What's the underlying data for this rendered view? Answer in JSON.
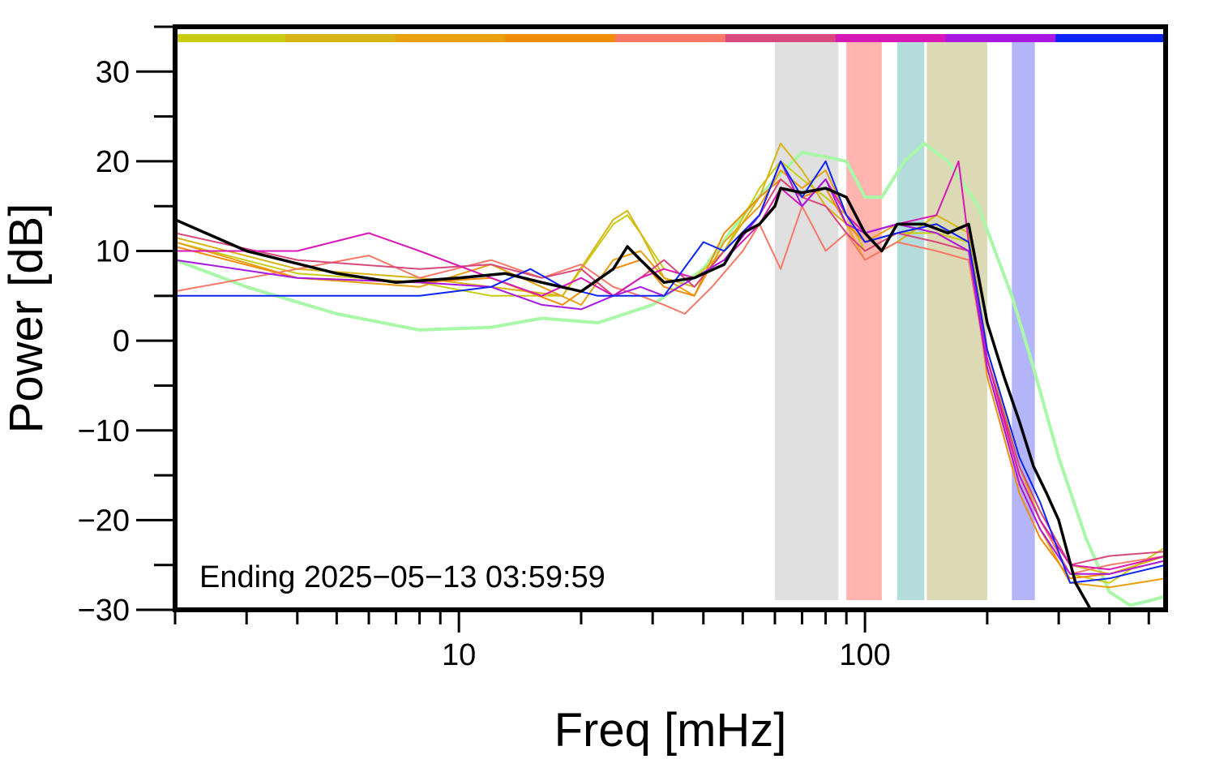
{
  "chart_data": {
    "type": "line",
    "title": "",
    "xlabel": "Freq [mHz]",
    "ylabel": "Power [dB]",
    "annotation": "Ending 2025−05−13 03:59:59",
    "x_scale": "log",
    "xlim": [
      2,
      550
    ],
    "ylim": [
      -30,
      35
    ],
    "x_ticks_major": [
      10,
      100
    ],
    "x_tick_labels": [
      "10",
      "100"
    ],
    "y_ticks": [
      -30,
      -20,
      -10,
      0,
      10,
      20,
      30
    ],
    "y_tick_labels": [
      "−30",
      "−20",
      "−10",
      "0",
      "10",
      "20",
      "30"
    ],
    "grid": false,
    "legend": "none",
    "top_color_strip": [
      "#c8cc14",
      "#d8b414",
      "#e8a010",
      "#f08c0a",
      "#f87868",
      "#d8487c",
      "#d818b4",
      "#a818e0",
      "#0c24f8"
    ],
    "shaded_bands": [
      {
        "x0": 60,
        "x1": 86,
        "color": "#e0e0e0"
      },
      {
        "x0": 90,
        "x1": 110,
        "color": "#ffb4b0"
      },
      {
        "x0": 120,
        "x1": 140,
        "color": "#b4dcdc"
      },
      {
        "x0": 142,
        "x1": 200,
        "color": "#dcdab4"
      },
      {
        "x0": 230,
        "x1": 262,
        "color": "#b4b4f8"
      }
    ],
    "series": [
      {
        "color": "#a8f8a8",
        "width": 4,
        "points": [
          [
            2,
            9
          ],
          [
            3,
            6
          ],
          [
            5,
            3
          ],
          [
            8,
            1.2
          ],
          [
            12,
            1.5
          ],
          [
            16,
            2.5
          ],
          [
            22,
            2
          ],
          [
            30,
            4
          ],
          [
            40,
            8
          ],
          [
            50,
            14
          ],
          [
            60,
            18
          ],
          [
            70,
            21
          ],
          [
            80,
            20.5
          ],
          [
            90,
            20
          ],
          [
            100,
            16
          ],
          [
            110,
            16
          ],
          [
            125,
            20
          ],
          [
            140,
            22
          ],
          [
            160,
            20
          ],
          [
            190,
            15
          ],
          [
            230,
            5
          ],
          [
            260,
            -3
          ],
          [
            300,
            -13
          ],
          [
            350,
            -22
          ],
          [
            400,
            -28
          ],
          [
            450,
            -29.5
          ],
          [
            500,
            -29
          ],
          [
            550,
            -28.5
          ]
        ]
      },
      {
        "color": "#c8cc14",
        "width": 2,
        "points": [
          [
            2,
            11
          ],
          [
            4,
            7.5
          ],
          [
            8,
            6.5
          ],
          [
            12,
            5
          ],
          [
            18,
            5
          ],
          [
            24,
            13
          ],
          [
            26,
            14
          ],
          [
            28,
            12
          ],
          [
            32,
            8
          ],
          [
            38,
            7
          ],
          [
            45,
            10
          ],
          [
            55,
            17
          ],
          [
            62,
            20
          ],
          [
            70,
            18
          ],
          [
            80,
            16
          ],
          [
            90,
            14
          ],
          [
            100,
            10
          ],
          [
            120,
            12
          ],
          [
            150,
            12
          ],
          [
            180,
            11
          ],
          [
            200,
            -2
          ],
          [
            240,
            -15
          ],
          [
            270,
            -20
          ],
          [
            320,
            -26
          ],
          [
            400,
            -27
          ],
          [
            550,
            -23
          ]
        ]
      },
      {
        "color": "#d8b414",
        "width": 2,
        "points": [
          [
            2,
            11.5
          ],
          [
            4,
            8
          ],
          [
            8,
            7
          ],
          [
            12,
            6
          ],
          [
            18,
            5
          ],
          [
            24,
            13.5
          ],
          [
            26,
            14.5
          ],
          [
            28,
            12
          ],
          [
            32,
            7
          ],
          [
            38,
            6
          ],
          [
            45,
            10
          ],
          [
            55,
            16
          ],
          [
            62,
            22
          ],
          [
            70,
            19
          ],
          [
            80,
            15
          ],
          [
            90,
            13
          ],
          [
            100,
            9
          ],
          [
            120,
            11
          ],
          [
            150,
            14
          ],
          [
            180,
            12
          ],
          [
            200,
            -1
          ],
          [
            240,
            -14
          ],
          [
            270,
            -20
          ],
          [
            320,
            -25
          ],
          [
            400,
            -26
          ],
          [
            550,
            -24
          ]
        ]
      },
      {
        "color": "#e8a010",
        "width": 2,
        "points": [
          [
            2,
            11
          ],
          [
            4,
            7
          ],
          [
            8,
            6
          ],
          [
            12,
            8.5
          ],
          [
            16,
            6
          ],
          [
            20,
            4
          ],
          [
            24,
            9
          ],
          [
            28,
            10
          ],
          [
            32,
            7
          ],
          [
            38,
            5
          ],
          [
            45,
            11
          ],
          [
            55,
            15
          ],
          [
            62,
            19
          ],
          [
            70,
            17
          ],
          [
            80,
            19
          ],
          [
            90,
            14
          ],
          [
            100,
            11
          ],
          [
            120,
            13
          ],
          [
            150,
            12
          ],
          [
            180,
            10
          ],
          [
            200,
            -3
          ],
          [
            240,
            -16
          ],
          [
            270,
            -21
          ],
          [
            320,
            -27
          ],
          [
            400,
            -27.5
          ],
          [
            550,
            -26.5
          ]
        ]
      },
      {
        "color": "#f08c0a",
        "width": 2,
        "points": [
          [
            2,
            10.5
          ],
          [
            4,
            7
          ],
          [
            8,
            6.5
          ],
          [
            12,
            7
          ],
          [
            18,
            4
          ],
          [
            24,
            8
          ],
          [
            28,
            9
          ],
          [
            32,
            6
          ],
          [
            38,
            5
          ],
          [
            45,
            12
          ],
          [
            55,
            16
          ],
          [
            62,
            18
          ],
          [
            70,
            16
          ],
          [
            80,
            17
          ],
          [
            90,
            13
          ],
          [
            100,
            11
          ],
          [
            120,
            12
          ],
          [
            150,
            13
          ],
          [
            180,
            11
          ],
          [
            200,
            -4
          ],
          [
            240,
            -17
          ],
          [
            270,
            -22
          ],
          [
            320,
            -26.5
          ],
          [
            400,
            -26
          ],
          [
            550,
            -24.5
          ]
        ]
      },
      {
        "color": "#f87868",
        "width": 2,
        "points": [
          [
            2,
            5.5
          ],
          [
            4,
            8
          ],
          [
            6,
            9.5
          ],
          [
            8,
            7
          ],
          [
            12,
            9
          ],
          [
            16,
            7
          ],
          [
            20,
            8.5
          ],
          [
            24,
            6
          ],
          [
            28,
            5
          ],
          [
            32,
            4
          ],
          [
            36,
            3
          ],
          [
            42,
            6
          ],
          [
            50,
            10
          ],
          [
            55,
            13
          ],
          [
            62,
            8
          ],
          [
            70,
            15
          ],
          [
            80,
            10
          ],
          [
            90,
            12
          ],
          [
            100,
            9
          ],
          [
            120,
            11
          ],
          [
            150,
            10
          ],
          [
            180,
            9
          ],
          [
            200,
            -3
          ],
          [
            240,
            -15
          ],
          [
            270,
            -20
          ],
          [
            320,
            -26
          ],
          [
            400,
            -25
          ],
          [
            550,
            -24
          ]
        ]
      },
      {
        "color": "#d8487c",
        "width": 2,
        "points": [
          [
            2,
            12
          ],
          [
            4,
            9
          ],
          [
            8,
            8
          ],
          [
            12,
            8.5
          ],
          [
            16,
            7
          ],
          [
            20,
            8
          ],
          [
            24,
            5
          ],
          [
            28,
            7
          ],
          [
            32,
            9
          ],
          [
            38,
            6
          ],
          [
            45,
            10
          ],
          [
            55,
            14
          ],
          [
            62,
            18
          ],
          [
            70,
            16
          ],
          [
            80,
            15
          ],
          [
            90,
            12
          ],
          [
            100,
            10
          ],
          [
            120,
            12
          ],
          [
            150,
            11
          ],
          [
            180,
            10
          ],
          [
            200,
            -2
          ],
          [
            240,
            -14
          ],
          [
            270,
            -19
          ],
          [
            320,
            -25
          ],
          [
            400,
            -24
          ],
          [
            550,
            -23.5
          ]
        ]
      },
      {
        "color": "#d818b4",
        "width": 2,
        "points": [
          [
            2,
            10
          ],
          [
            4,
            10
          ],
          [
            6,
            12
          ],
          [
            8,
            10
          ],
          [
            12,
            7
          ],
          [
            16,
            5
          ],
          [
            20,
            7
          ],
          [
            24,
            5
          ],
          [
            28,
            7
          ],
          [
            32,
            8
          ],
          [
            38,
            7
          ],
          [
            45,
            9
          ],
          [
            55,
            13
          ],
          [
            62,
            17
          ],
          [
            70,
            15
          ],
          [
            80,
            18
          ],
          [
            90,
            14
          ],
          [
            100,
            12
          ],
          [
            120,
            13
          ],
          [
            150,
            14
          ],
          [
            170,
            20
          ],
          [
            180,
            11
          ],
          [
            200,
            -2
          ],
          [
            240,
            -15
          ],
          [
            270,
            -20
          ],
          [
            320,
            -25
          ],
          [
            400,
            -25.5
          ],
          [
            550,
            -24
          ]
        ]
      },
      {
        "color": "#a818e0",
        "width": 2,
        "points": [
          [
            2,
            9
          ],
          [
            4,
            7
          ],
          [
            8,
            6.5
          ],
          [
            12,
            6
          ],
          [
            16,
            4
          ],
          [
            20,
            3.5
          ],
          [
            24,
            5
          ],
          [
            28,
            6
          ],
          [
            32,
            5
          ],
          [
            38,
            7
          ],
          [
            45,
            9
          ],
          [
            55,
            14
          ],
          [
            62,
            20
          ],
          [
            70,
            15
          ],
          [
            80,
            18
          ],
          [
            90,
            13
          ],
          [
            100,
            12
          ],
          [
            120,
            13
          ],
          [
            150,
            12
          ],
          [
            180,
            10
          ],
          [
            200,
            -3
          ],
          [
            240,
            -16
          ],
          [
            270,
            -21
          ],
          [
            320,
            -26
          ],
          [
            400,
            -26
          ],
          [
            550,
            -24.5
          ]
        ]
      },
      {
        "color": "#0c24f8",
        "width": 2,
        "points": [
          [
            2,
            5
          ],
          [
            4,
            5
          ],
          [
            8,
            5
          ],
          [
            12,
            6
          ],
          [
            15,
            8
          ],
          [
            18,
            6
          ],
          [
            22,
            5
          ],
          [
            28,
            5
          ],
          [
            32,
            5
          ],
          [
            40,
            11
          ],
          [
            45,
            10
          ],
          [
            55,
            14
          ],
          [
            62,
            20
          ],
          [
            70,
            16
          ],
          [
            80,
            20
          ],
          [
            90,
            14
          ],
          [
            100,
            11
          ],
          [
            120,
            12
          ],
          [
            150,
            13
          ],
          [
            180,
            11
          ],
          [
            200,
            -1
          ],
          [
            240,
            -13
          ],
          [
            270,
            -18
          ],
          [
            320,
            -27
          ],
          [
            400,
            -26.5
          ],
          [
            550,
            -25
          ]
        ]
      },
      {
        "color": "#000000",
        "width": 3.5,
        "points": [
          [
            2,
            13.5
          ],
          [
            3,
            10
          ],
          [
            5,
            7.5
          ],
          [
            7,
            6.5
          ],
          [
            10,
            7
          ],
          [
            13,
            7.5
          ],
          [
            16,
            6.5
          ],
          [
            20,
            5.5
          ],
          [
            24,
            8
          ],
          [
            26,
            10.5
          ],
          [
            28,
            9
          ],
          [
            32,
            6.5
          ],
          [
            38,
            7
          ],
          [
            45,
            8.5
          ],
          [
            50,
            12
          ],
          [
            55,
            13
          ],
          [
            60,
            15
          ],
          [
            62,
            17
          ],
          [
            70,
            16.5
          ],
          [
            80,
            17
          ],
          [
            90,
            16
          ],
          [
            100,
            12
          ],
          [
            110,
            10
          ],
          [
            120,
            13
          ],
          [
            140,
            13
          ],
          [
            160,
            12
          ],
          [
            180,
            13
          ],
          [
            200,
            2
          ],
          [
            220,
            -4
          ],
          [
            240,
            -9
          ],
          [
            260,
            -14
          ],
          [
            280,
            -17
          ],
          [
            300,
            -20
          ],
          [
            330,
            -27
          ],
          [
            360,
            -30
          ]
        ]
      }
    ]
  }
}
